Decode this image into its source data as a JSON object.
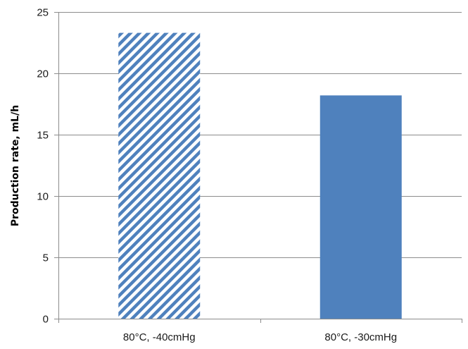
{
  "chart_data": {
    "type": "bar",
    "title": "",
    "xlabel": "",
    "ylabel": "Production rate, mL/h",
    "ylim": [
      0,
      25
    ],
    "yticks": [
      0,
      5,
      10,
      15,
      20,
      25
    ],
    "grid": true,
    "legend": "none",
    "categories": [
      "80°C, -40cmHg",
      "80°C, -30cmHg"
    ],
    "values": [
      23.3,
      18.2
    ],
    "bar_styles": [
      "diagonal-hatch",
      "solid"
    ],
    "colors": {
      "bar": "#4f81bd",
      "grid": "#8c8c8c",
      "axis": "#8c8c8c"
    }
  }
}
